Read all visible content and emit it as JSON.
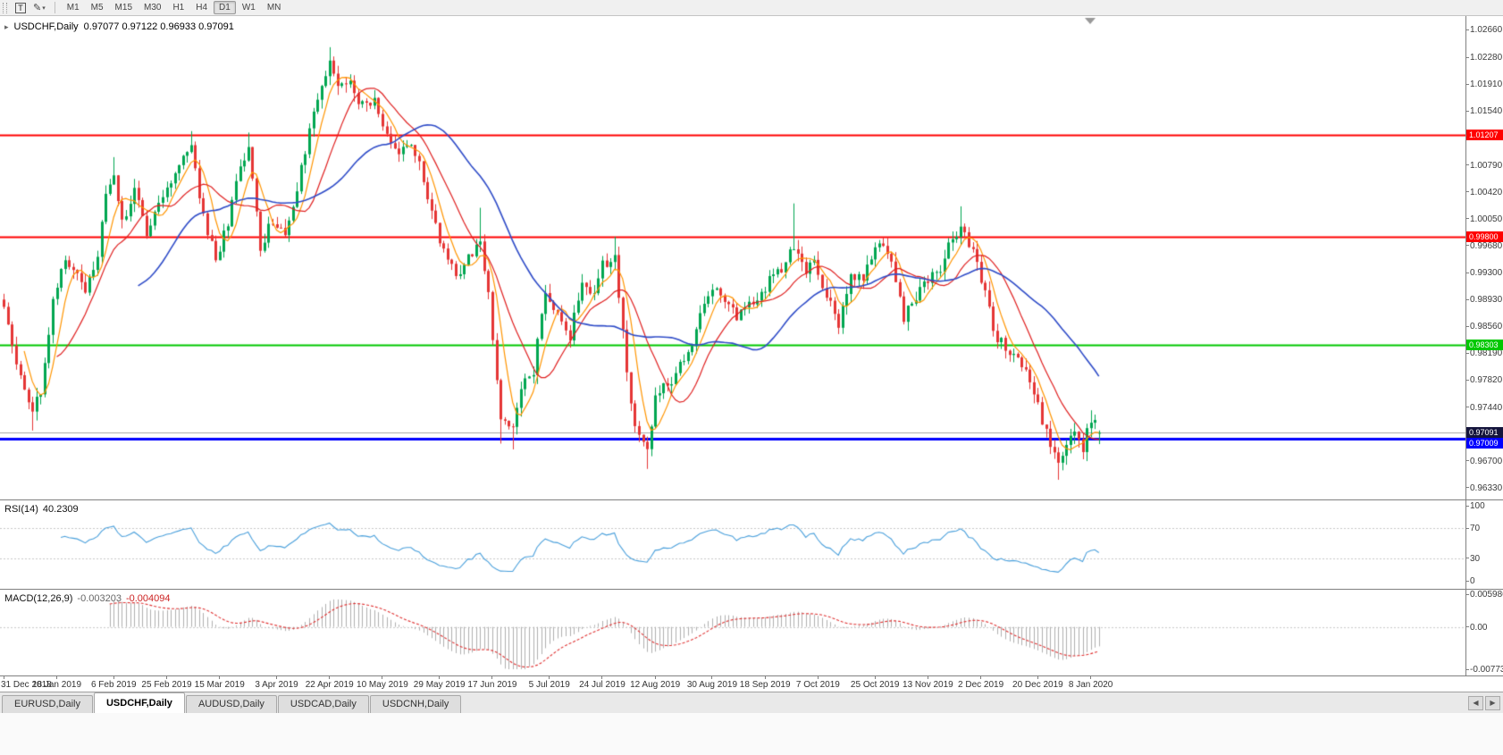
{
  "toolbar": {
    "chart_type_label": "T",
    "timeframes": [
      "M1",
      "M5",
      "M15",
      "M30",
      "H1",
      "H4",
      "D1",
      "W1",
      "MN"
    ],
    "active_timeframe": "D1"
  },
  "window_tabs": {
    "items": [
      "EURUSD,Daily",
      "USDCHF,Daily",
      "AUDUSD,Daily",
      "USDCAD,Daily",
      "USDCNH,Daily"
    ],
    "active": "USDCHF,Daily"
  },
  "chart_data": {
    "type": "candlestick",
    "symbol": "USDCHF",
    "timeframe": "Daily",
    "title": "USDCHF,Daily",
    "ohlc_text": "0.97077 0.97122 0.96933 0.97091",
    "current": {
      "open": 0.97077,
      "high": 0.97122,
      "low": 0.96933,
      "close": 0.97091
    },
    "num_candles": 270,
    "price_range": [
      0.9618,
      1.0285
    ],
    "price_axis_labels": [
      "1.02660",
      "1.02280",
      "1.01910",
      "1.01540",
      "1.00790",
      "1.00420",
      "1.00050",
      "0.99680",
      "0.99300",
      "0.98930",
      "0.98560",
      "0.98190",
      "0.97820",
      "0.97440",
      "0.96700",
      "0.96330"
    ],
    "date_labels": [
      "31 Dec 2018",
      "18 Jan 2019",
      "6 Feb 2019",
      "25 Feb 2019",
      "15 Mar 2019",
      "3 Apr 2019",
      "22 Apr 2019",
      "10 May 2019",
      "29 May 2019",
      "17 Jun 2019",
      "5 Jul 2019",
      "24 Jul 2019",
      "12 Aug 2019",
      "30 Aug 2019",
      "18 Sep 2019",
      "7 Oct 2019",
      "25 Oct 2019",
      "13 Nov 2019",
      "2 Dec 2019",
      "20 Dec 2019",
      "8 Jan 2020"
    ],
    "horizontal_lines": [
      {
        "value": 1.01207,
        "label": "1.01207",
        "color": "#ff0000",
        "width": 2
      },
      {
        "value": 0.998,
        "label": "0.99800",
        "color": "#ff0000",
        "width": 2
      },
      {
        "value": 0.98303,
        "label": "0.98303",
        "color": "#00c800",
        "width": 2
      },
      {
        "value": 0.97009,
        "label": "0.97009",
        "color": "#0000ff",
        "width": 3
      }
    ],
    "bid_line": {
      "value": 0.97091,
      "label": "0.97091",
      "line_color": "#a6a6a6",
      "label_bg": "#14143c"
    },
    "colors": {
      "up": "#00a651",
      "down": "#e53535",
      "ma_fast": "#ff9500",
      "ma_mid": "#e02020",
      "ma_slow": "#2f4cc8"
    },
    "ma_periods": {
      "fast": 6,
      "mid": 14,
      "slow": 34
    },
    "close_anchors": [
      [
        0,
        0.988
      ],
      [
        2,
        0.9825
      ],
      [
        4,
        0.979
      ],
      [
        7,
        0.9738
      ],
      [
        9,
        0.9768
      ],
      [
        12,
        0.9892
      ],
      [
        15,
        0.9952
      ],
      [
        17,
        0.993
      ],
      [
        20,
        0.991
      ],
      [
        23,
        0.9952
      ],
      [
        25,
        1.0035
      ],
      [
        27,
        1.0068
      ],
      [
        29,
        1.0
      ],
      [
        32,
        1.0042
      ],
      [
        35,
        0.9985
      ],
      [
        38,
        1.0022
      ],
      [
        41,
        1.006
      ],
      [
        44,
        1.0088
      ],
      [
        46,
        1.0105
      ],
      [
        48,
        1.0032
      ],
      [
        52,
        0.9945
      ],
      [
        55,
        1.0
      ],
      [
        58,
        1.0075
      ],
      [
        60,
        1.0105
      ],
      [
        63,
        0.996
      ],
      [
        66,
        1.0005
      ],
      [
        69,
        0.9982
      ],
      [
        72,
        1.0048
      ],
      [
        75,
        1.0128
      ],
      [
        78,
        1.019
      ],
      [
        80,
        1.0218
      ],
      [
        82,
        1.0185
      ],
      [
        85,
        1.0192
      ],
      [
        88,
        1.016
      ],
      [
        91,
        1.0172
      ],
      [
        94,
        1.012
      ],
      [
        97,
        1.009
      ],
      [
        100,
        1.0112
      ],
      [
        102,
        1.0078
      ],
      [
        105,
        1.001
      ],
      [
        108,
        0.9962
      ],
      [
        111,
        0.9925
      ],
      [
        114,
        0.9948
      ],
      [
        117,
        0.997
      ],
      [
        119,
        0.99
      ],
      [
        122,
        0.9732
      ],
      [
        125,
        0.972
      ],
      [
        127,
        0.9768
      ],
      [
        130,
        0.9795
      ],
      [
        133,
        0.991
      ],
      [
        136,
        0.9872
      ],
      [
        139,
        0.9842
      ],
      [
        142,
        0.992
      ],
      [
        145,
        0.9902
      ],
      [
        147,
        0.994
      ],
      [
        150,
        0.9952
      ],
      [
        153,
        0.979
      ],
      [
        155,
        0.972
      ],
      [
        158,
        0.9684
      ],
      [
        160,
        0.9766
      ],
      [
        163,
        0.9776
      ],
      [
        166,
        0.98
      ],
      [
        169,
        0.9836
      ],
      [
        171,
        0.9876
      ],
      [
        174,
        0.9904
      ],
      [
        177,
        0.9895
      ],
      [
        180,
        0.9866
      ],
      [
        183,
        0.9885
      ],
      [
        186,
        0.99
      ],
      [
        189,
        0.9934
      ],
      [
        191,
        0.9925
      ],
      [
        194,
        0.997
      ],
      [
        197,
        0.9926
      ],
      [
        199,
        0.9948
      ],
      [
        202,
        0.9895
      ],
      [
        205,
        0.9862
      ],
      [
        208,
        0.993
      ],
      [
        211,
        0.9922
      ],
      [
        213,
        0.9956
      ],
      [
        216,
        0.997
      ],
      [
        219,
        0.9925
      ],
      [
        221,
        0.9868
      ],
      [
        224,
        0.9898
      ],
      [
        227,
        0.9924
      ],
      [
        230,
        0.9932
      ],
      [
        232,
        0.997
      ],
      [
        235,
        0.999
      ],
      [
        238,
        0.9955
      ],
      [
        241,
        0.9905
      ],
      [
        243,
        0.9848
      ],
      [
        246,
        0.9826
      ],
      [
        249,
        0.9812
      ],
      [
        252,
        0.978
      ],
      [
        254,
        0.9746
      ],
      [
        257,
        0.9692
      ],
      [
        259,
        0.9662
      ],
      [
        261,
        0.9694
      ],
      [
        263,
        0.9714
      ],
      [
        265,
        0.9688
      ],
      [
        267,
        0.973
      ],
      [
        269,
        0.97091
      ]
    ],
    "wick_extremes": {
      "7": {
        "low": 0.9712
      },
      "27": {
        "high": 1.009
      },
      "46": {
        "high": 1.0126
      },
      "60": {
        "high": 1.0124
      },
      "80": {
        "high": 1.0242
      },
      "117": {
        "high": 1.002
      },
      "122": {
        "low": 0.9694
      },
      "125": {
        "low": 0.9686
      },
      "150": {
        "high": 0.998
      },
      "158": {
        "low": 0.9659
      },
      "194": {
        "high": 1.0026
      },
      "235": {
        "high": 1.0022
      },
      "259": {
        "low": 0.9644
      },
      "267": {
        "high": 0.974
      }
    },
    "indicators": {
      "rsi": {
        "label": "RSI(14)",
        "value_text": "40.2309",
        "period": 14,
        "color": "#4aa0dc",
        "axis_labels": [
          100,
          70,
          30,
          0
        ],
        "levels": [
          70,
          30
        ],
        "range": [
          0,
          100
        ]
      },
      "macd": {
        "label": "MACD(12,26,9)",
        "main_text": "-0.003203",
        "signal_text": "-0.004094",
        "axis_labels": [
          "0.005986",
          "0.00",
          "-0.007733"
        ],
        "range": [
          -0.007733,
          0.005986
        ],
        "hist_color": "#b0b0b0",
        "signal_color": "#e03030"
      }
    }
  }
}
